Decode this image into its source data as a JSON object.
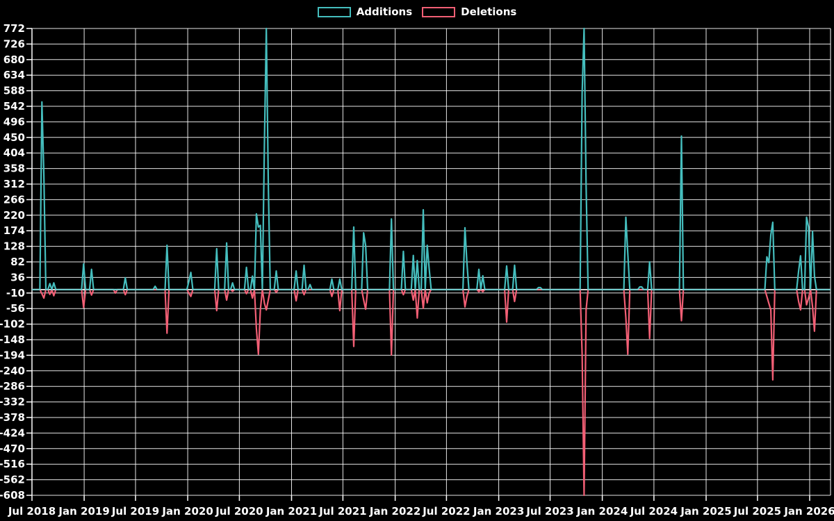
{
  "chart_data": {
    "type": "line",
    "title": "",
    "background_color": "#000000",
    "grid": true,
    "grid_color": "#ffffff",
    "text_color": "#ffffff",
    "legend_position": "top-center",
    "ylim": [
      -608,
      772
    ],
    "y_ticks": [
      772,
      726,
      680,
      634,
      588,
      542,
      496,
      450,
      404,
      358,
      312,
      266,
      220,
      174,
      128,
      82,
      36,
      -10,
      -56,
      -102,
      -148,
      -194,
      -240,
      -286,
      -332,
      -378,
      -424,
      -470,
      -516,
      -562,
      -608
    ],
    "x_ticks": [
      "Jul 2018",
      "Jan 2019",
      "Jul 2019",
      "Jan 2020",
      "Jul 2020",
      "Jan 2021",
      "Jul 2021",
      "Jan 2022",
      "Jul 2022",
      "Jan 2023",
      "Jul 2023",
      "Jan 2024",
      "Jul 2024",
      "Jan 2025",
      "Jul 2025",
      "Jan 2026"
    ],
    "x_start": "2018-07-01",
    "x_end": "2026-03-13",
    "sampling": "weekly, zero between listed points",
    "series": [
      {
        "name": "Additions",
        "color": "#45bebe",
        "points": [
          [
            "2018-08-04",
            555
          ],
          [
            "2018-08-11",
            340
          ],
          [
            "2018-09-01",
            18
          ],
          [
            "2018-09-15",
            20
          ],
          [
            "2018-12-29",
            76
          ],
          [
            "2019-01-26",
            60
          ],
          [
            "2019-05-25",
            35
          ],
          [
            "2019-09-07",
            10
          ],
          [
            "2019-10-19",
            131
          ],
          [
            "2020-01-04",
            25
          ],
          [
            "2020-01-11",
            51
          ],
          [
            "2020-04-11",
            121
          ],
          [
            "2020-05-16",
            138
          ],
          [
            "2020-06-06",
            20
          ],
          [
            "2020-07-25",
            66
          ],
          [
            "2020-08-15",
            40
          ],
          [
            "2020-08-29",
            224
          ],
          [
            "2020-09-05",
            185
          ],
          [
            "2020-09-12",
            190
          ],
          [
            "2020-09-26",
            425
          ],
          [
            "2020-10-03",
            772
          ],
          [
            "2020-10-10",
            306
          ],
          [
            "2020-11-07",
            55
          ],
          [
            "2021-01-16",
            55
          ],
          [
            "2021-02-13",
            72
          ],
          [
            "2021-03-06",
            15
          ],
          [
            "2021-05-22",
            31
          ],
          [
            "2021-06-19",
            31
          ],
          [
            "2021-08-07",
            185
          ],
          [
            "2021-09-11",
            168
          ],
          [
            "2021-09-18",
            130
          ],
          [
            "2021-12-18",
            209
          ],
          [
            "2022-01-29",
            113
          ],
          [
            "2022-03-05",
            101
          ],
          [
            "2022-03-19",
            86
          ],
          [
            "2022-04-09",
            236
          ],
          [
            "2022-04-23",
            131
          ],
          [
            "2022-04-30",
            62
          ],
          [
            "2022-09-03",
            183
          ],
          [
            "2022-09-10",
            80
          ],
          [
            "2022-10-22",
            60
          ],
          [
            "2022-11-05",
            41
          ],
          [
            "2023-01-28",
            70
          ],
          [
            "2023-02-25",
            72
          ],
          [
            "2023-05-20",
            6
          ],
          [
            "2023-05-27",
            6
          ],
          [
            "2023-10-21",
            580
          ],
          [
            "2023-10-28",
            772
          ],
          [
            "2023-11-04",
            310
          ],
          [
            "2024-03-23",
            214
          ],
          [
            "2024-03-30",
            107
          ],
          [
            "2024-05-11",
            8
          ],
          [
            "2024-05-18",
            8
          ],
          [
            "2024-06-15",
            82
          ],
          [
            "2024-10-05",
            454
          ],
          [
            "2025-08-02",
            97
          ],
          [
            "2025-08-09",
            80
          ],
          [
            "2025-08-16",
            162
          ],
          [
            "2025-08-23",
            199
          ],
          [
            "2025-11-22",
            55
          ],
          [
            "2025-11-29",
            100
          ],
          [
            "2025-12-20",
            214
          ],
          [
            "2025-12-27",
            185
          ],
          [
            "2026-01-10",
            172
          ],
          [
            "2026-01-17",
            40
          ]
        ]
      },
      {
        "name": "Deletions",
        "color": "#f25f75",
        "points": [
          [
            "2018-08-04",
            -12
          ],
          [
            "2018-08-11",
            -25
          ],
          [
            "2018-09-01",
            -14
          ],
          [
            "2018-09-15",
            -18
          ],
          [
            "2018-12-29",
            -53
          ],
          [
            "2019-01-26",
            -16
          ],
          [
            "2019-04-20",
            -10
          ],
          [
            "2019-05-25",
            -15
          ],
          [
            "2019-10-19",
            -129
          ],
          [
            "2020-01-04",
            -10
          ],
          [
            "2020-01-11",
            -20
          ],
          [
            "2020-04-11",
            -62
          ],
          [
            "2020-05-16",
            -31
          ],
          [
            "2020-06-06",
            -5
          ],
          [
            "2020-07-25",
            -12
          ],
          [
            "2020-08-15",
            -25
          ],
          [
            "2020-08-29",
            -115
          ],
          [
            "2020-09-05",
            -191
          ],
          [
            "2020-09-12",
            -60
          ],
          [
            "2020-09-26",
            -40
          ],
          [
            "2020-10-03",
            -60
          ],
          [
            "2020-10-10",
            -30
          ],
          [
            "2020-11-07",
            -8
          ],
          [
            "2021-01-16",
            -33
          ],
          [
            "2021-02-13",
            -15
          ],
          [
            "2021-05-22",
            -20
          ],
          [
            "2021-06-19",
            -62
          ],
          [
            "2021-08-07",
            -168
          ],
          [
            "2021-09-11",
            -30
          ],
          [
            "2021-09-18",
            -58
          ],
          [
            "2021-12-18",
            -193
          ],
          [
            "2022-01-29",
            -15
          ],
          [
            "2022-03-05",
            -31
          ],
          [
            "2022-03-19",
            -84
          ],
          [
            "2022-04-09",
            -55
          ],
          [
            "2022-04-23",
            -39
          ],
          [
            "2022-04-30",
            -10
          ],
          [
            "2022-09-03",
            -51
          ],
          [
            "2022-09-10",
            -20
          ],
          [
            "2022-10-22",
            -6
          ],
          [
            "2022-11-05",
            -6
          ],
          [
            "2023-01-28",
            -96
          ],
          [
            "2023-02-25",
            -35
          ],
          [
            "2023-10-21",
            -190
          ],
          [
            "2023-10-28",
            -608
          ],
          [
            "2023-11-04",
            -60
          ],
          [
            "2024-03-23",
            -82
          ],
          [
            "2024-03-30",
            -191
          ],
          [
            "2024-06-15",
            -144
          ],
          [
            "2024-10-05",
            -92
          ],
          [
            "2025-08-02",
            -20
          ],
          [
            "2025-08-09",
            -40
          ],
          [
            "2025-08-16",
            -60
          ],
          [
            "2025-08-23",
            -267
          ],
          [
            "2025-11-22",
            -35
          ],
          [
            "2025-11-29",
            -60
          ],
          [
            "2025-12-20",
            -45
          ],
          [
            "2025-12-27",
            -25
          ],
          [
            "2026-01-10",
            -50
          ],
          [
            "2026-01-17",
            -123
          ]
        ]
      }
    ]
  }
}
